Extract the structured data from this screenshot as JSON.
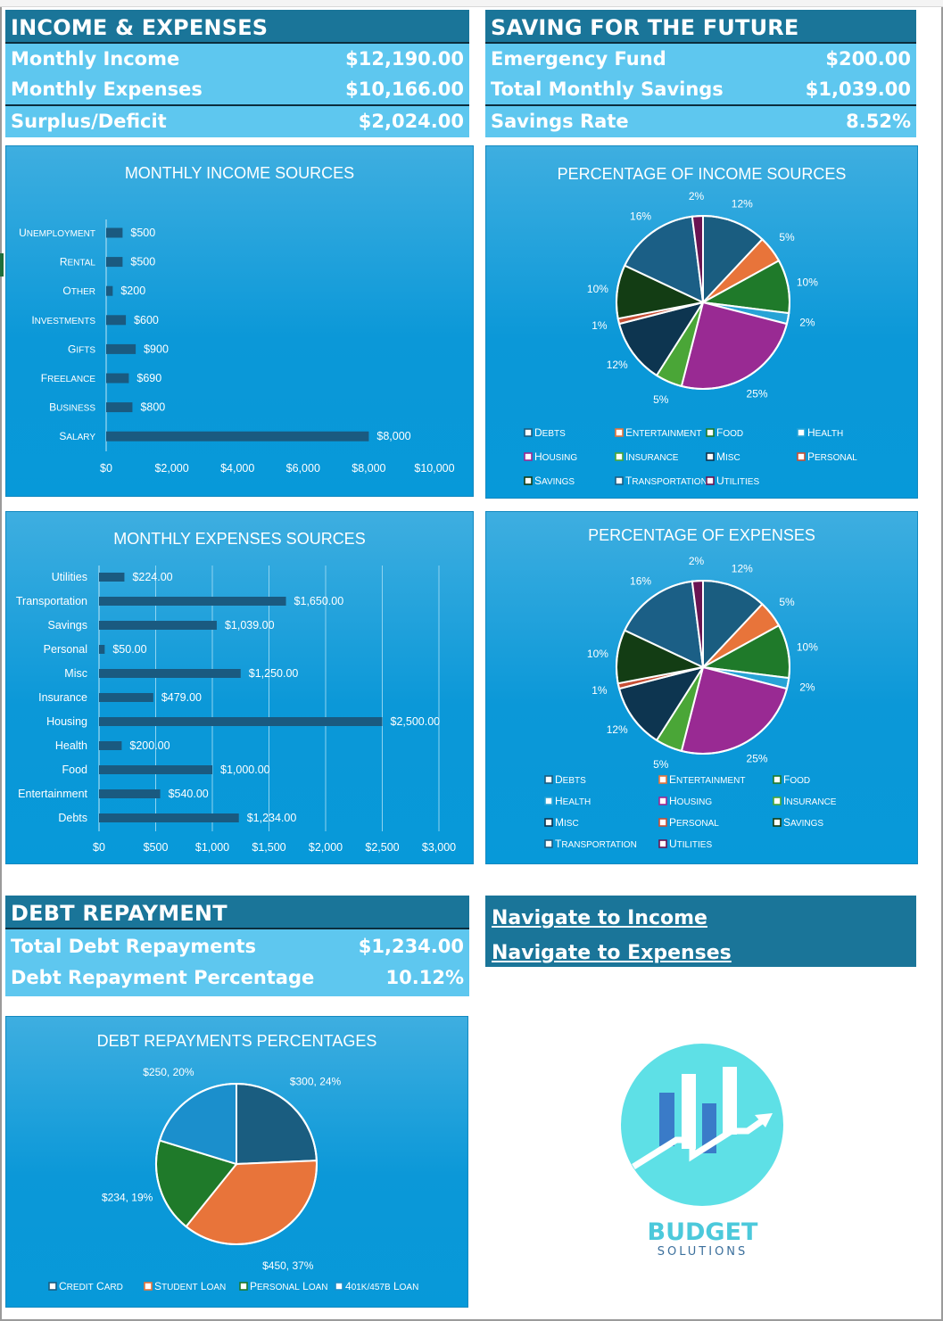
{
  "income_panel": {
    "title": "INCOME & EXPENSES",
    "rows": [
      {
        "label": "Monthly Income",
        "value": "$12,190.00"
      },
      {
        "label": "Monthly Expenses",
        "value": "$10,166.00"
      },
      {
        "label": "Surplus/Deficit",
        "value": "$2,024.00"
      }
    ]
  },
  "savings_panel": {
    "title": "SAVING FOR THE FUTURE",
    "rows": [
      {
        "label": "Emergency Fund",
        "value": "$200.00"
      },
      {
        "label": "Total Monthly Savings",
        "value": "$1,039.00"
      },
      {
        "label": "Savings Rate",
        "value": "8.52%"
      }
    ]
  },
  "debt_panel": {
    "title": "DEBT REPAYMENT",
    "rows": [
      {
        "label": "Total Debt Repayments",
        "value": "$1,234.00"
      },
      {
        "label": "Debt Repayment Percentage",
        "value": "10.12%"
      }
    ]
  },
  "navigation": {
    "income_link": "Navigate to Income",
    "expenses_link": "Navigate to Expenses"
  },
  "logo": {
    "line1": "BUDGET",
    "line2": "SOLUTIONS",
    "accent": "#5ee0e6",
    "bar_color": "#3a7bc8"
  },
  "colors": {
    "panel_header": "#1a7599",
    "panel_row": "#5ec7ef",
    "chart_bg": "#0b98d8",
    "bar": "#1a5a80",
    "slices": [
      "#1a5d80",
      "#e8743a",
      "#1f7a2a",
      "#27a3d6",
      "#992a93",
      "#4aa637",
      "#0d3550",
      "#c74f35",
      "#133d14",
      "#1b5f86",
      "#6a1452"
    ]
  },
  "chart_data": [
    {
      "id": "income-bar",
      "type": "bar",
      "orientation": "horizontal",
      "title": "MONTHLY INCOME SOURCES",
      "categories": [
        "Unemployment",
        "Rental",
        "Other",
        "Investments",
        "Gifts",
        "Freelance",
        "Business",
        "Salary"
      ],
      "values": [
        500,
        500,
        200,
        600,
        900,
        690,
        800,
        8000
      ],
      "labels": [
        "$500",
        "$500",
        "$200",
        "$600",
        "$900",
        "$690",
        "$800",
        "$8,000"
      ],
      "ticks": [
        "$0",
        "$2,000",
        "$4,000",
        "$6,000",
        "$8,000",
        "$10,000"
      ],
      "xlim": [
        0,
        10000
      ],
      "grid": false
    },
    {
      "id": "income-pie",
      "type": "pie",
      "title": "PERCENTAGE OF INCOME SOURCES",
      "categories": [
        "Debts",
        "Entertainment",
        "Food",
        "Health",
        "Housing",
        "Insurance",
        "Misc",
        "Personal",
        "Savings",
        "Transportation",
        "Utilities"
      ],
      "values": [
        12,
        5,
        10,
        2,
        25,
        5,
        12,
        1,
        10,
        16,
        2
      ],
      "labels": [
        "12%",
        "5%",
        "10%",
        "2%",
        "25%",
        "5%",
        "12%",
        "1%",
        "10%",
        "16%",
        "2%"
      ],
      "legend": "bottom"
    },
    {
      "id": "expenses-bar",
      "type": "bar",
      "orientation": "horizontal",
      "title": "MONTHLY EXPENSES SOURCES",
      "categories": [
        "Utilities",
        "Transportation",
        "Savings",
        "Personal",
        "Misc",
        "Insurance",
        "Housing",
        "Health",
        "Food",
        "Entertainment",
        "Debts"
      ],
      "values": [
        224,
        1650,
        1039,
        50,
        1250,
        479,
        2500,
        200,
        1000,
        540,
        1234
      ],
      "labels": [
        "$224.00",
        "$1,650.00",
        "$1,039.00",
        "$50.00",
        "$1,250.00",
        "$479.00",
        "$2,500.00",
        "$200.00",
        "$1,000.00",
        "$540.00",
        "$1,234.00"
      ],
      "ticks": [
        "$0",
        "$500",
        "$1,000",
        "$1,500",
        "$2,000",
        "$2,500",
        "$3,000"
      ],
      "xlim": [
        0,
        3000
      ],
      "grid": true
    },
    {
      "id": "expenses-pie",
      "type": "pie",
      "title": "PERCENTAGE OF EXPENSES",
      "categories": [
        "Debts",
        "Entertainment",
        "Food",
        "Health",
        "Housing",
        "Insurance",
        "Misc",
        "Personal",
        "Savings",
        "Transportation",
        "Utilities"
      ],
      "values": [
        12,
        5,
        10,
        2,
        25,
        5,
        12,
        1,
        10,
        16,
        2
      ],
      "labels": [
        "12%",
        "5%",
        "10%",
        "2%",
        "25%",
        "5%",
        "12%",
        "1%",
        "10%",
        "16%",
        "2%"
      ],
      "legend": "bottom"
    },
    {
      "id": "debt-pie",
      "type": "pie",
      "title": "DEBT REPAYMENTS PERCENTAGES",
      "categories": [
        "Credit Card",
        "Student Loan",
        "Personal Loan",
        "401k/457b Loan"
      ],
      "values": [
        300,
        450,
        234,
        250
      ],
      "labels": [
        "$300, 24%",
        "$450, 37%",
        "$234, 19%",
        "$250, 20%"
      ],
      "slice_colors": [
        "#1a5d80",
        "#e8743a",
        "#1f7a2a",
        "#1b8fcc"
      ],
      "legend": "bottom"
    }
  ]
}
